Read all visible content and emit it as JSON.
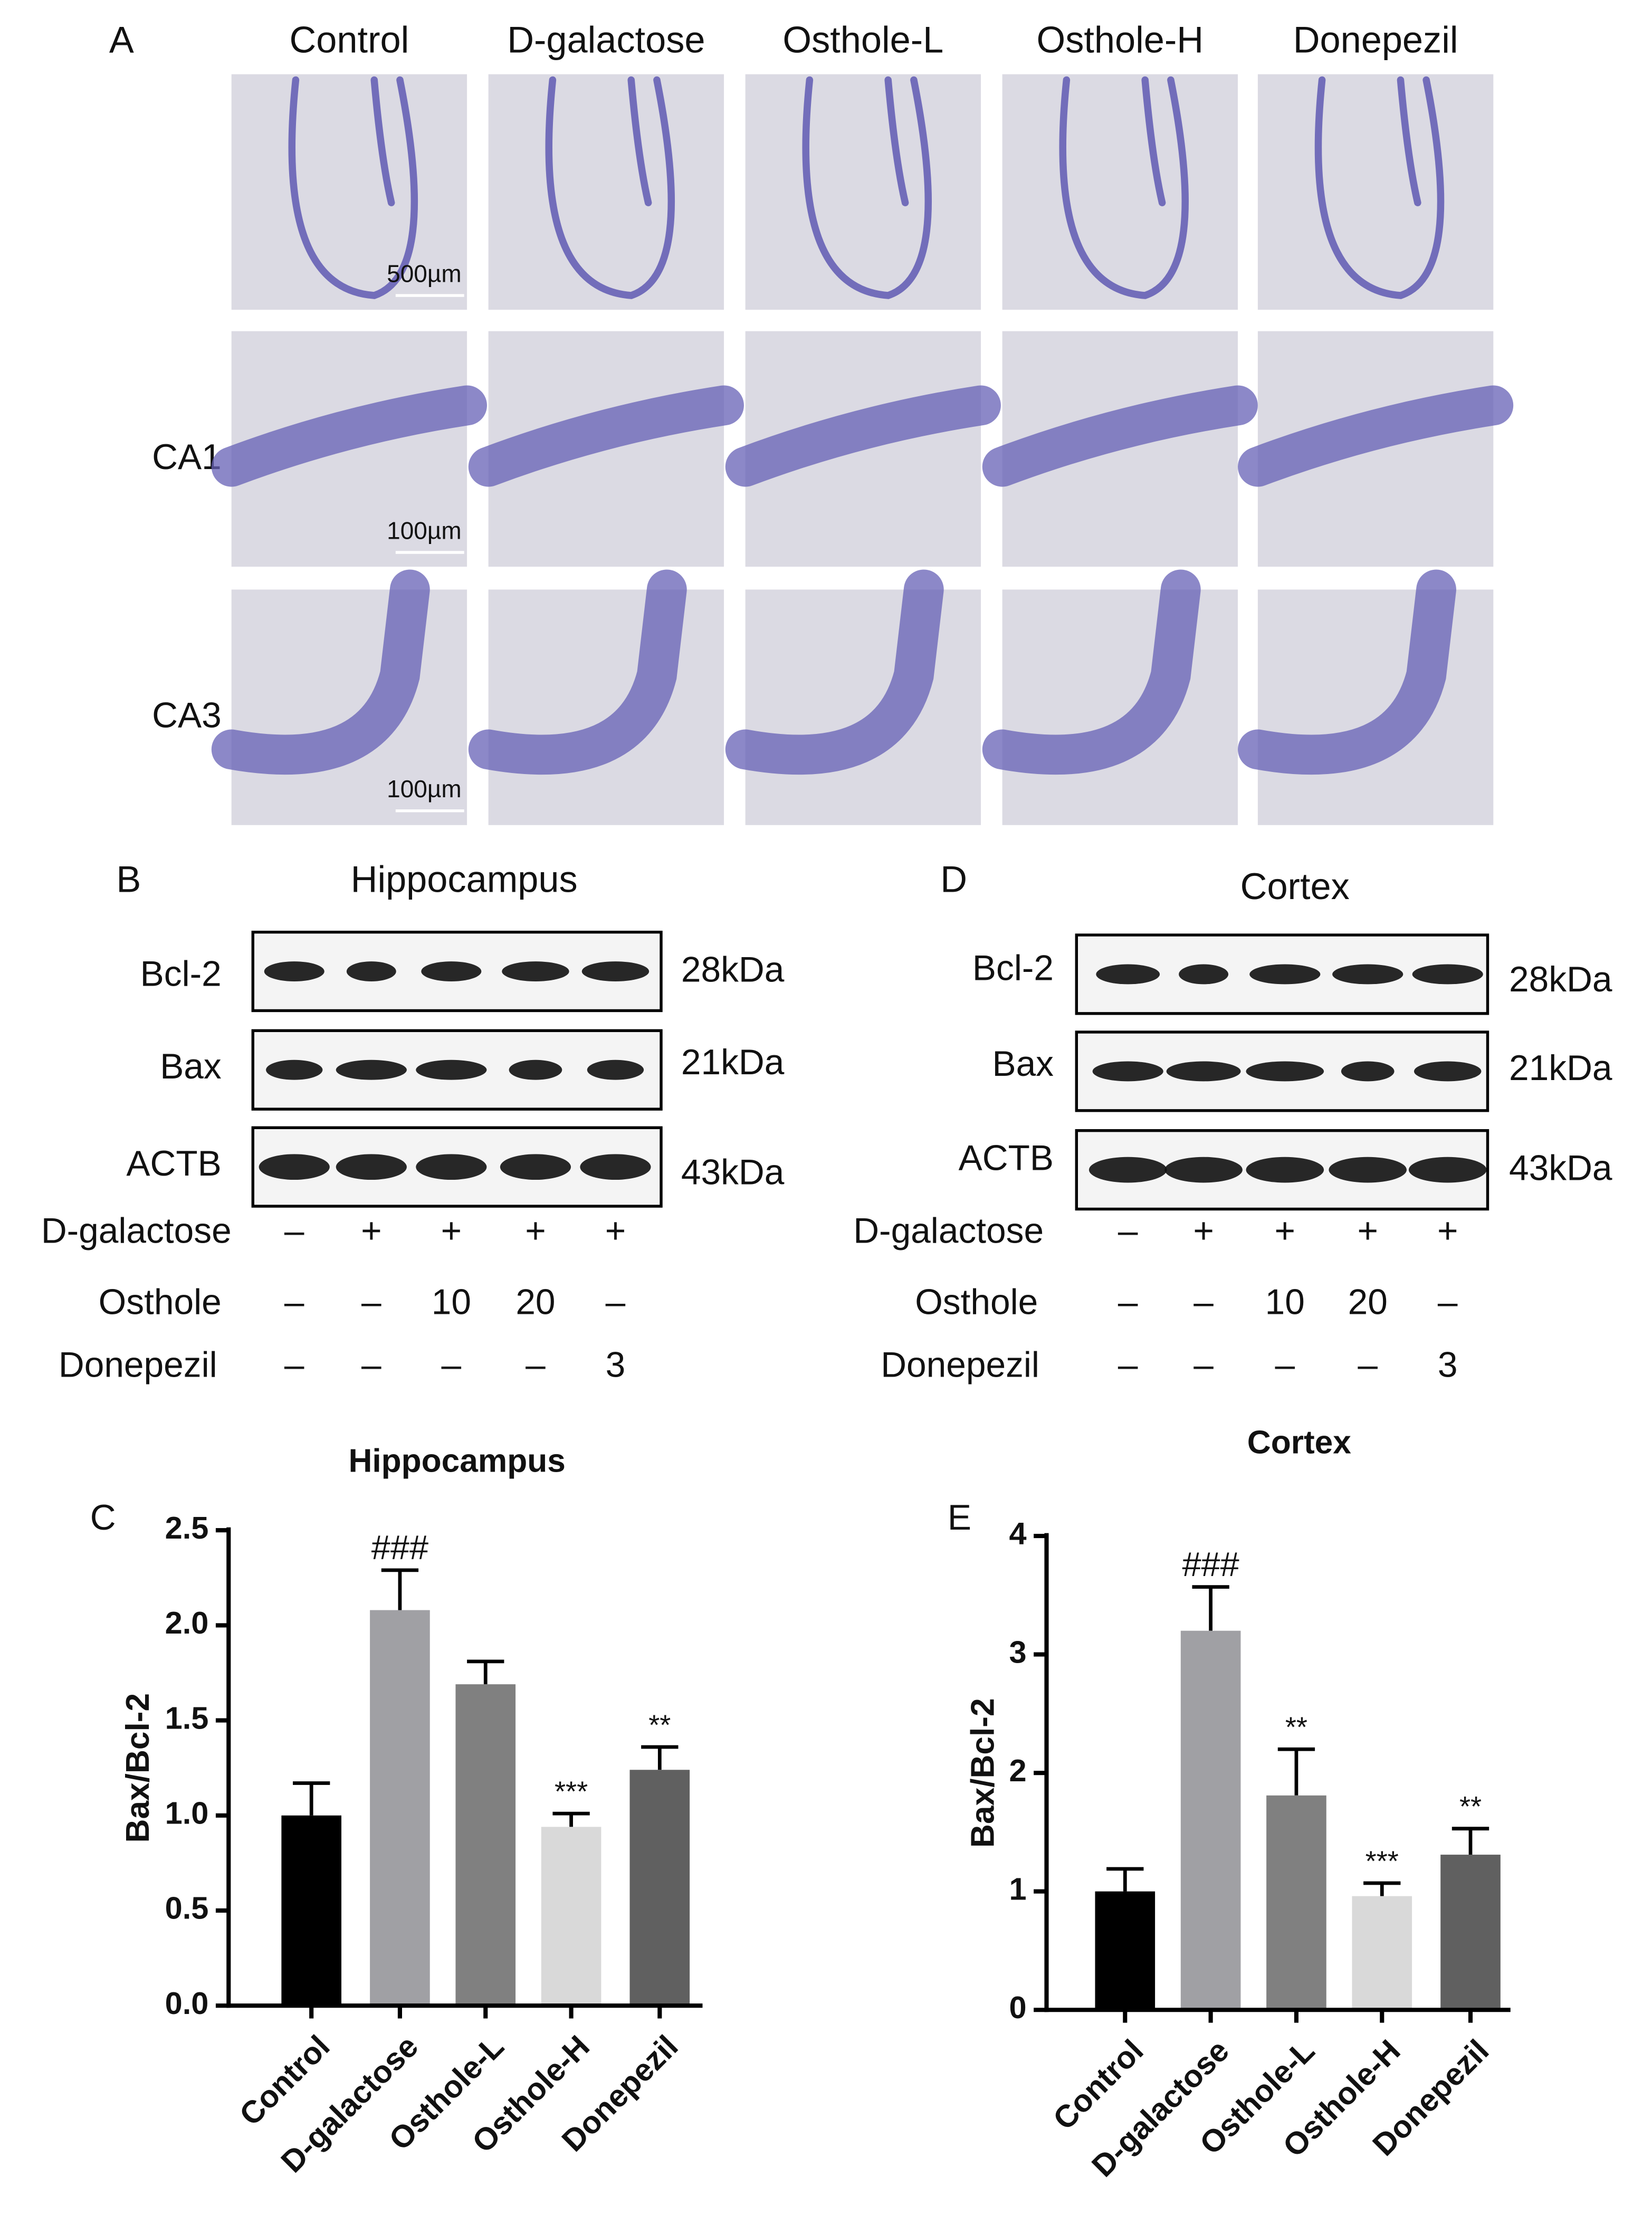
{
  "histology": {
    "label": "A",
    "columns": [
      "Control",
      "D-galactose",
      "Osthole-L",
      "Osthole-H",
      "Donepezil"
    ],
    "rows": [
      {
        "scale_bar": "500µm"
      },
      {
        "label": "CA1",
        "scale_bar": "100µm"
      },
      {
        "label": "CA3",
        "scale_bar": "100µm"
      }
    ]
  },
  "western_blots": [
    {
      "label": "B",
      "title": "Hippocampus",
      "bands": [
        {
          "protein": "Bcl-2",
          "size": "28kDa"
        },
        {
          "protein": "Bax",
          "size": "21kDa"
        },
        {
          "protein": "ACTB",
          "size": "43kDa"
        }
      ],
      "treatments": [
        {
          "name": "D-galactose",
          "doses": [
            "–",
            "+",
            "+",
            "+",
            "+"
          ]
        },
        {
          "name": "Osthole",
          "doses": [
            "–",
            "–",
            "10",
            "20",
            "–"
          ]
        },
        {
          "name": "Donepezil",
          "doses": [
            "–",
            "–",
            "–",
            "–",
            "3"
          ]
        }
      ]
    },
    {
      "label": "D",
      "title": "Cortex",
      "bands": [
        {
          "protein": "Bcl-2",
          "size": "28kDa"
        },
        {
          "protein": "Bax",
          "size": "21kDa"
        },
        {
          "protein": "ACTB",
          "size": "43kDa"
        }
      ],
      "treatments": [
        {
          "name": "D-galactose",
          "doses": [
            "–",
            "+",
            "+",
            "+",
            "+"
          ]
        },
        {
          "name": "Osthole",
          "doses": [
            "–",
            "–",
            "10",
            "20",
            "–"
          ]
        },
        {
          "name": "Donepezil",
          "doses": [
            "–",
            "–",
            "–",
            "–",
            "3"
          ]
        }
      ]
    }
  ],
  "chart_data": [
    {
      "type": "bar",
      "label": "C",
      "title": "Hippocampus",
      "y_label": "Bax/Bcl-2",
      "categories": [
        "Control",
        "D-galactose",
        "Osthole-L",
        "Osthole-H",
        "Donepezil"
      ],
      "values": [
        1.0,
        2.08,
        1.69,
        0.94,
        1.24
      ],
      "errors": [
        0.17,
        0.21,
        0.12,
        0.07,
        0.12
      ],
      "annotations": [
        null,
        "###",
        null,
        "***",
        "**"
      ],
      "colors": [
        "#000000",
        "#a0a0a4",
        "#808080",
        "#d9d9d9",
        "#606060"
      ],
      "ylim": [
        0,
        2.5
      ],
      "yticks": [
        {
          "value": 0,
          "label": "0.0"
        },
        0.5,
        {
          "value": 1,
          "label": "1.0"
        },
        1.5,
        {
          "value": 2,
          "label": "2.0"
        },
        2.5
      ]
    },
    {
      "type": "bar",
      "label": "E",
      "title": "Cortex",
      "y_label": "Bax/Bcl-2",
      "categories": [
        "Control",
        "D-galactose",
        "Osthole-L",
        "Osthole-H",
        "Donepezil"
      ],
      "values": [
        1.0,
        3.2,
        1.81,
        0.96,
        1.31
      ],
      "errors": [
        0.19,
        0.37,
        0.39,
        0.11,
        0.22
      ],
      "annotations": [
        null,
        "###",
        "**",
        "***",
        "**"
      ],
      "colors": [
        "#000000",
        "#a0a0a4",
        "#808080",
        "#d9d9d9",
        "#606060"
      ],
      "ylim": [
        0,
        4
      ],
      "yticks": [
        0,
        1,
        2,
        3,
        4
      ]
    }
  ]
}
